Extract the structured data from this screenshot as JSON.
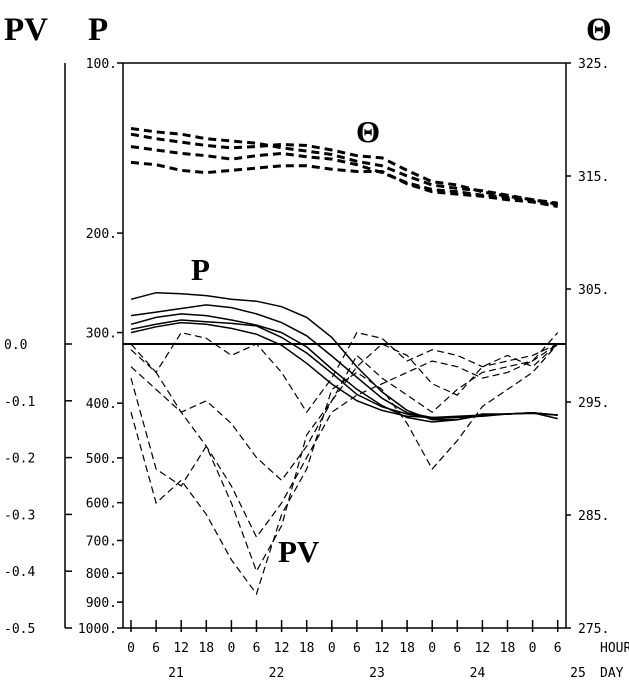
{
  "chart_data": {
    "type": "line",
    "headers": {
      "pv": "PV",
      "p": "P",
      "theta": "Θ"
    },
    "annotations": {
      "theta": "Θ",
      "p": "P",
      "pv": "PV"
    },
    "x_axis": {
      "unit_label": "HOUR",
      "day_label": "DAY",
      "hours": [
        "0",
        "6",
        "12",
        "18",
        "0",
        "6",
        "12",
        "18",
        "0",
        "6",
        "12",
        "18",
        "0",
        "6",
        "12",
        "18",
        "0",
        "6"
      ],
      "days": [
        "21",
        "22",
        "23",
        "24",
        "25"
      ]
    },
    "pressure_axis": {
      "ticks": [
        "100.",
        "200.",
        "300.",
        "400.",
        "500.",
        "600.",
        "700.",
        "800.",
        "900.",
        "1000."
      ],
      "ylim": [
        100,
        1000
      ],
      "scale": "log",
      "inverted": true
    },
    "pv_axis": {
      "ticks": [
        "0.0",
        "-0.1",
        "-0.2",
        "-0.3",
        "-0.4",
        "-0.5"
      ],
      "ylim": [
        -0.5,
        0.0
      ]
    },
    "theta_axis": {
      "ticks": [
        "325.",
        "315.",
        "305.",
        "295.",
        "285.",
        "275."
      ],
      "ylim": [
        275,
        325
      ]
    },
    "theta_series": [
      {
        "x": [
          0,
          6,
          12,
          18,
          24,
          30,
          36,
          42,
          48,
          54,
          60,
          66,
          72,
          78,
          84,
          90,
          96,
          102
        ],
        "y": [
          319.2,
          318.9,
          318.7,
          318.3,
          318.1,
          317.9,
          317.5,
          317.2,
          316.9,
          316.3,
          315.9,
          315.0,
          314.2,
          313.9,
          313.7,
          313.3,
          312.9,
          312.6
        ]
      },
      {
        "x": [
          0,
          6,
          12,
          18,
          24,
          30,
          36,
          42,
          48,
          54,
          60,
          66,
          72,
          78,
          84,
          90,
          96,
          102
        ],
        "y": [
          318.7,
          318.3,
          318.0,
          317.7,
          317.5,
          317.6,
          317.8,
          317.7,
          317.3,
          316.8,
          316.6,
          315.5,
          314.5,
          314.2,
          313.6,
          313.2,
          312.9,
          312.5
        ]
      },
      {
        "x": [
          0,
          6,
          12,
          18,
          24,
          30,
          36,
          42,
          48,
          54,
          60,
          66,
          72,
          78,
          84,
          90,
          96,
          102
        ],
        "y": [
          317.6,
          317.3,
          317.0,
          316.8,
          316.5,
          316.8,
          317.0,
          316.7,
          316.5,
          316.0,
          315.3,
          314.4,
          313.8,
          313.6,
          313.3,
          313.1,
          312.8,
          312.4
        ]
      },
      {
        "x": [
          0,
          6,
          12,
          18,
          24,
          30,
          36,
          42,
          48,
          54,
          60,
          66,
          72,
          78,
          84,
          90,
          96,
          102
        ],
        "y": [
          316.2,
          316.0,
          315.5,
          315.3,
          315.5,
          315.7,
          315.9,
          315.9,
          315.6,
          315.4,
          315.4,
          314.3,
          313.6,
          313.4,
          313.2,
          312.9,
          312.7,
          312.3
        ]
      }
    ],
    "pressure_series": [
      {
        "x": [
          0,
          6,
          12,
          18,
          24,
          30,
          36,
          42,
          48,
          54,
          60,
          66,
          72,
          78,
          84,
          90,
          96,
          102
        ],
        "y": [
          262,
          255,
          256,
          258,
          262,
          264,
          270,
          282,
          306,
          345,
          382,
          412,
          428,
          428,
          418,
          418,
          416,
          426
        ]
      },
      {
        "x": [
          0,
          6,
          12,
          18,
          24,
          30,
          36,
          42,
          48,
          54,
          60,
          66,
          72,
          78,
          84,
          90,
          96,
          102
        ],
        "y": [
          280,
          276,
          272,
          268,
          271,
          278,
          288,
          304,
          330,
          360,
          392,
          416,
          424,
          424,
          422,
          418,
          416,
          420
        ]
      },
      {
        "x": [
          0,
          6,
          12,
          18,
          24,
          30,
          36,
          42,
          48,
          54,
          60,
          66,
          72,
          78,
          84,
          90,
          96,
          102
        ],
        "y": [
          290,
          282,
          278,
          280,
          285,
          291,
          300,
          318,
          348,
          378,
          404,
          424,
          432,
          428,
          420,
          418,
          416,
          420
        ]
      },
      {
        "x": [
          0,
          6,
          12,
          18,
          24,
          30,
          36,
          42,
          48,
          54,
          60,
          66,
          72,
          78,
          84,
          90,
          96,
          102
        ],
        "y": [
          296,
          290,
          285,
          287,
          289,
          292,
          306,
          326,
          354,
          386,
          406,
          418,
          426,
          424,
          420,
          418,
          416,
          420
        ]
      },
      {
        "x": [
          0,
          6,
          12,
          18,
          24,
          30,
          36,
          42,
          48,
          54,
          60,
          66,
          72,
          78,
          84,
          90,
          96,
          102
        ],
        "y": [
          300,
          293,
          288,
          290,
          295,
          302,
          316,
          340,
          370,
          396,
          412,
          422,
          424,
          422,
          420,
          418,
          417,
          420
        ]
      }
    ],
    "pv_series": [
      {
        "x": [
          0,
          6,
          12,
          18,
          24,
          30,
          36,
          42,
          48,
          54,
          60,
          66,
          72,
          78,
          84,
          90,
          96,
          102
        ],
        "y": [
          -0.01,
          -0.05,
          -0.12,
          -0.18,
          -0.25,
          -0.34,
          -0.28,
          -0.2,
          -0.12,
          -0.09,
          -0.07,
          -0.05,
          -0.03,
          -0.04,
          -0.06,
          -0.05,
          -0.03,
          0.02
        ]
      },
      {
        "x": [
          0,
          6,
          12,
          18,
          24,
          30,
          36,
          42,
          48,
          54,
          60,
          66,
          72,
          78,
          84,
          90,
          96,
          102
        ],
        "y": [
          -0.06,
          -0.22,
          -0.25,
          -0.18,
          -0.28,
          -0.4,
          -0.32,
          -0.16,
          -0.1,
          -0.04,
          0.0,
          -0.02,
          -0.07,
          -0.09,
          -0.04,
          -0.02,
          -0.04,
          0.0
        ]
      },
      {
        "x": [
          0,
          6,
          12,
          18,
          24,
          30,
          36,
          42,
          48,
          54,
          60,
          66,
          72,
          78,
          84,
          90,
          96,
          102
        ],
        "y": [
          -0.12,
          -0.28,
          -0.24,
          -0.3,
          -0.38,
          -0.44,
          -0.3,
          -0.22,
          -0.08,
          -0.05,
          -0.08,
          -0.14,
          -0.22,
          -0.17,
          -0.11,
          -0.08,
          -0.05,
          0.0
        ]
      },
      {
        "x": [
          0,
          6,
          12,
          18,
          24,
          30,
          36,
          42,
          48,
          54,
          60,
          66,
          72,
          78,
          84,
          90,
          96,
          102
        ],
        "y": [
          0.0,
          -0.05,
          0.02,
          0.01,
          -0.02,
          0.0,
          -0.05,
          -0.12,
          -0.06,
          0.02,
          0.01,
          -0.03,
          -0.01,
          -0.02,
          -0.04,
          -0.03,
          -0.02,
          0.0
        ]
      },
      {
        "x": [
          0,
          6,
          12,
          18,
          24,
          30,
          36,
          42,
          48,
          54,
          60,
          66,
          72,
          78,
          84,
          90,
          96,
          102
        ],
        "y": [
          -0.04,
          -0.08,
          -0.12,
          -0.1,
          -0.14,
          -0.2,
          -0.24,
          -0.18,
          -0.1,
          -0.02,
          -0.06,
          -0.09,
          -0.12,
          -0.08,
          -0.05,
          -0.04,
          -0.03,
          0.0
        ]
      }
    ]
  }
}
